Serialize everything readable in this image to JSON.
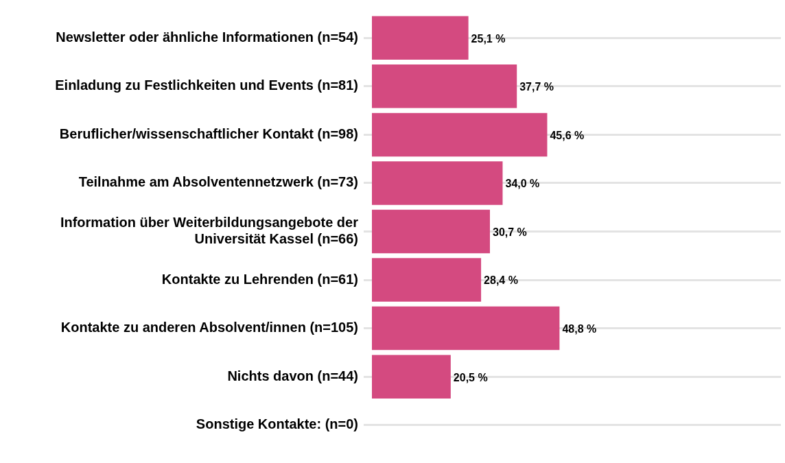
{
  "chart_data": {
    "type": "bar",
    "orientation": "horizontal",
    "grid": "y",
    "legend": false,
    "tick_labels": "y",
    "categories": [
      "Newsletter oder ähnliche Informationen (n=54)",
      "Einladung zu Festlichkeiten und Events (n=81)",
      "Beruflicher/wissenschaftlicher Kontakt (n=98)",
      "Teilnahme am Absolventennetzwerk (n=73)",
      "Information über Weiterbildungsangebote der Universität Kassel (n=66)",
      "Kontakte zu Lehrenden (n=61)",
      "Kontakte zu anderen Absolvent/innen (n=105)",
      "Nichts davon (n=44)",
      "Sonstige Kontakte: (n=0)"
    ],
    "values": [
      25.1,
      37.7,
      45.6,
      34.0,
      30.7,
      28.4,
      48.8,
      20.5,
      null
    ],
    "value_labels": [
      "25,1 %",
      "37,7 %",
      "45,6 %",
      "34,0 %",
      "30,7 %",
      "28,4 %",
      "48,8 %",
      "20,5 %",
      null
    ],
    "color": "#d44a80"
  }
}
